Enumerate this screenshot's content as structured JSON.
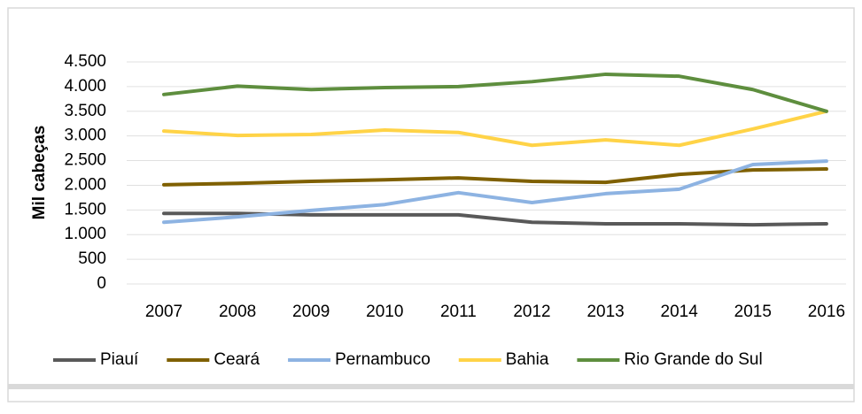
{
  "chart_data": {
    "type": "line",
    "y_label": "Mil cabeças",
    "categories": [
      "2007",
      "2008",
      "2009",
      "2010",
      "2011",
      "2012",
      "2013",
      "2014",
      "2015",
      "2016"
    ],
    "series": [
      {
        "name": "Piauí",
        "color": "#595959",
        "values": [
          1430,
          1430,
          1400,
          1400,
          1400,
          1250,
          1220,
          1220,
          1200,
          1220
        ]
      },
      {
        "name": "Ceará",
        "color": "#7f6000",
        "values": [
          2010,
          2040,
          2080,
          2110,
          2150,
          2080,
          2060,
          2220,
          2310,
          2330
        ]
      },
      {
        "name": "Pernambuco",
        "color": "#8db3e2",
        "values": [
          1250,
          1360,
          1490,
          1610,
          1850,
          1650,
          1830,
          1920,
          2420,
          2490
        ]
      },
      {
        "name": "Bahia",
        "color": "#ffd347",
        "values": [
          3100,
          3010,
          3030,
          3120,
          3070,
          2810,
          2920,
          2810,
          3140,
          3500
        ]
      },
      {
        "name": "Rio Grande do Sul",
        "color": "#5e8e3e",
        "values": [
          3840,
          4010,
          3940,
          3980,
          4000,
          4100,
          4250,
          4210,
          3940,
          3500
        ]
      }
    ],
    "ylim": [
      0,
      4500
    ],
    "yticks": [
      0,
      500,
      {
        "value": 1000,
        "label": "1.000"
      },
      {
        "value": 1500,
        "label": "1.500"
      },
      {
        "value": 2000,
        "label": "2.000"
      },
      {
        "value": 2500,
        "label": "2.500"
      },
      {
        "value": 3000,
        "label": "3.000"
      },
      {
        "value": 3500,
        "label": "3.500"
      },
      {
        "value": 4000,
        "label": "4.000"
      },
      {
        "value": 4500,
        "label": "4.500"
      }
    ],
    "grid": true,
    "legend": "bottom"
  }
}
